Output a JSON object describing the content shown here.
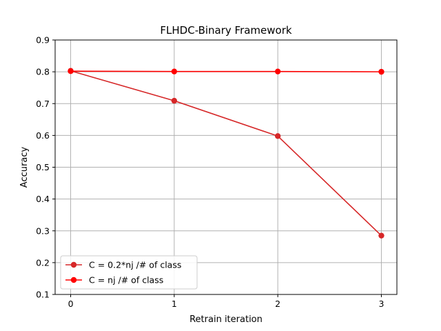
{
  "chart_data": {
    "type": "line",
    "title": "FLHDC-Binary Framework",
    "xlabel": "Retrain iteration",
    "ylabel": "Accuracy",
    "x": [
      0,
      1,
      2,
      3
    ],
    "xticks": [
      "0",
      "1",
      "2",
      "3"
    ],
    "yticks": [
      "0.1",
      "0.2",
      "0.3",
      "0.4",
      "0.5",
      "0.6",
      "0.7",
      "0.8",
      "0.9"
    ],
    "ylim": [
      0.1,
      0.9
    ],
    "xlim": [
      -0.15,
      3.15
    ],
    "grid": true,
    "legend_position": "lower-left",
    "series": [
      {
        "name": "C = 0.2*nj /# of class",
        "values": [
          0.803,
          0.709,
          0.598,
          0.285
        ],
        "color": "#d62728"
      },
      {
        "name": "C = nj /# of class",
        "values": [
          0.802,
          0.801,
          0.801,
          0.8
        ],
        "color": "#ff0000"
      }
    ]
  }
}
